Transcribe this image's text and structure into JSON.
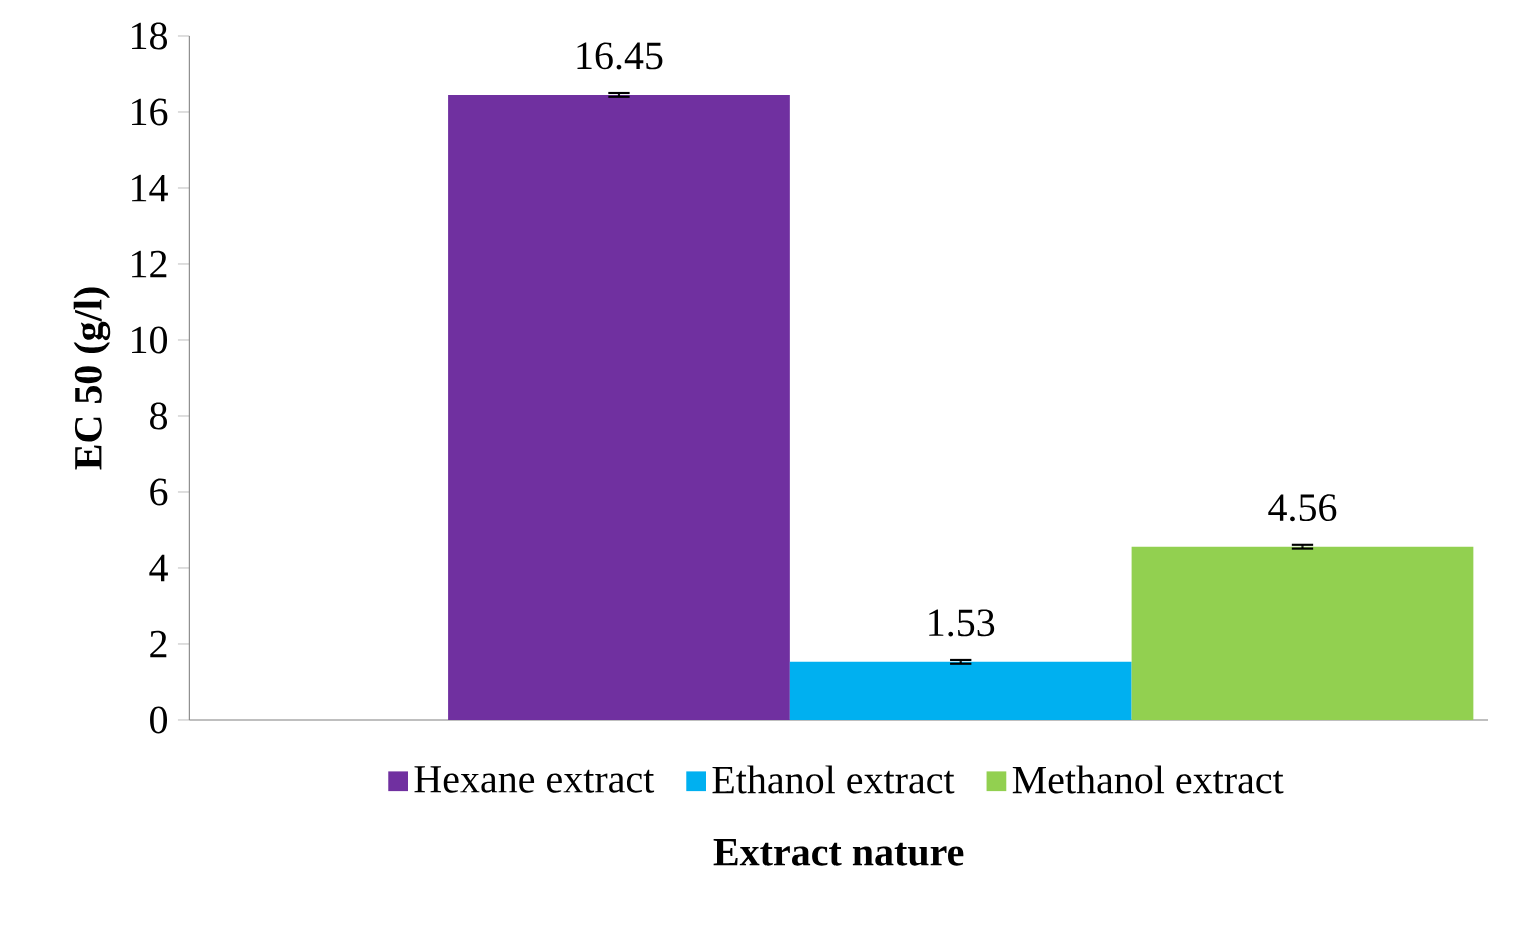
{
  "chart_data": {
    "type": "bar",
    "xlabel": "Extract nature",
    "ylabel": "EC 50 (g/l)",
    "categories": [
      null
    ],
    "series": [
      {
        "name": "Hexane extract",
        "color": "#7030a0",
        "values": [
          16.45
        ],
        "errors": [
          0.05
        ]
      },
      {
        "name": "Ethanol extract",
        "color": "#00b0f0",
        "values": [
          1.53
        ],
        "errors": [
          0.05
        ]
      },
      {
        "name": "Methanol extract",
        "color": "#92d050",
        "values": [
          4.56
        ],
        "errors": [
          0.05
        ]
      }
    ],
    "ylim": [
      0,
      18
    ],
    "yticks": [
      0,
      2,
      4,
      6,
      8,
      10,
      12,
      14,
      16,
      18
    ],
    "data_labels": true,
    "legend": "bottom"
  }
}
